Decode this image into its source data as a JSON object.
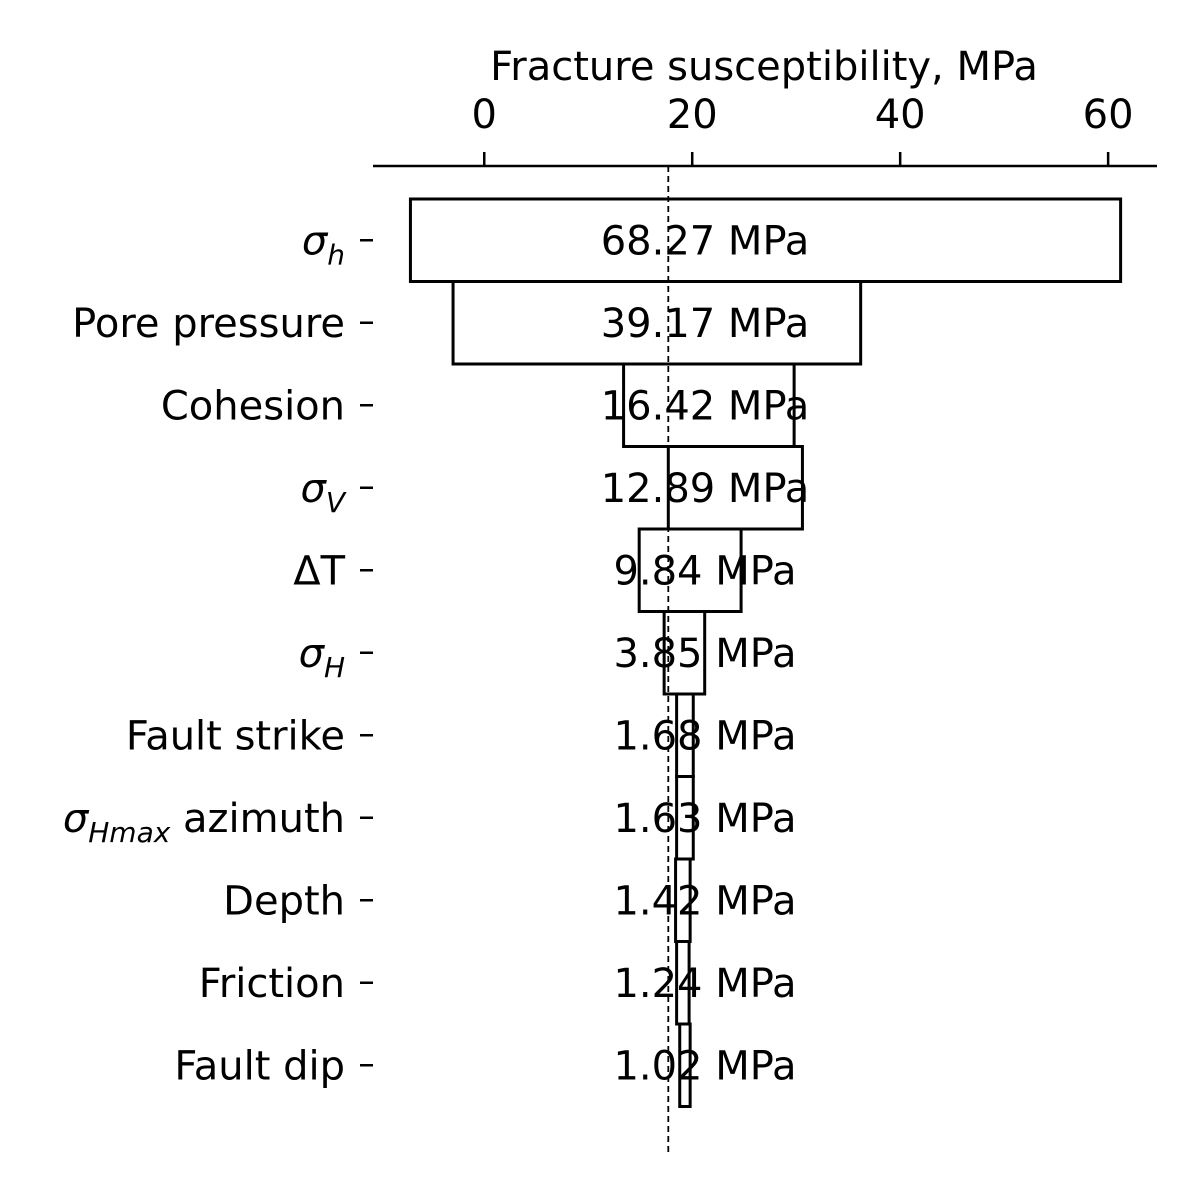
{
  "chart_data": {
    "type": "bar",
    "orientation": "horizontal",
    "chart_kind": "tornado",
    "title": "",
    "xlabel": "Fracture susceptibility, MPa",
    "xlabel_position": "top",
    "ylabel": "",
    "xlim": [
      -10.7,
      64.7
    ],
    "xticks": [
      0,
      20,
      40,
      60
    ],
    "xtick_labels": [
      "0",
      "20",
      "40",
      "60"
    ],
    "baseline": 17.7,
    "baseline_style": "dashed",
    "grid": false,
    "legend": "none",
    "bar_color": "#ffffff",
    "edge_color": "#000000",
    "categories": [
      {
        "label": "σ",
        "sub": "h",
        "suffix": ""
      },
      {
        "label": "Pore pressure",
        "sub": "",
        "suffix": ""
      },
      {
        "label": "Cohesion",
        "sub": "",
        "suffix": ""
      },
      {
        "label": "σ",
        "sub": "V",
        "suffix": ""
      },
      {
        "label": "ΔT",
        "sub": "",
        "suffix": ""
      },
      {
        "label": "σ",
        "sub": "H",
        "suffix": ""
      },
      {
        "label": "Fault strike",
        "sub": "",
        "suffix": ""
      },
      {
        "label": "σ",
        "sub": "Hmax",
        "suffix": " azimuth"
      },
      {
        "label": "Depth",
        "sub": "",
        "suffix": ""
      },
      {
        "label": "Friction",
        "sub": "",
        "suffix": ""
      },
      {
        "label": "Fault dip",
        "sub": "",
        "suffix": ""
      }
    ],
    "bars": [
      {
        "low": -7.1,
        "high": 61.2,
        "range_label": "68.27 MPa"
      },
      {
        "low": -3.0,
        "high": 36.2,
        "range_label": "39.17 MPa"
      },
      {
        "low": 13.4,
        "high": 29.8,
        "range_label": "16.42 MPa"
      },
      {
        "low": 17.7,
        "high": 30.6,
        "range_label": "12.89 MPa"
      },
      {
        "low": 14.9,
        "high": 24.7,
        "range_label": "9.84 MPa"
      },
      {
        "low": 17.3,
        "high": 21.2,
        "range_label": "3.85 MPa"
      },
      {
        "low": 18.5,
        "high": 20.1,
        "range_label": "1.68 MPa"
      },
      {
        "low": 18.5,
        "high": 20.1,
        "range_label": "1.63 MPa"
      },
      {
        "low": 18.4,
        "high": 19.8,
        "range_label": "1.42 MPa"
      },
      {
        "low": 18.5,
        "high": 19.7,
        "range_label": "1.24 MPa"
      },
      {
        "low": 18.8,
        "high": 19.8,
        "range_label": "1.02 MPa"
      }
    ]
  }
}
